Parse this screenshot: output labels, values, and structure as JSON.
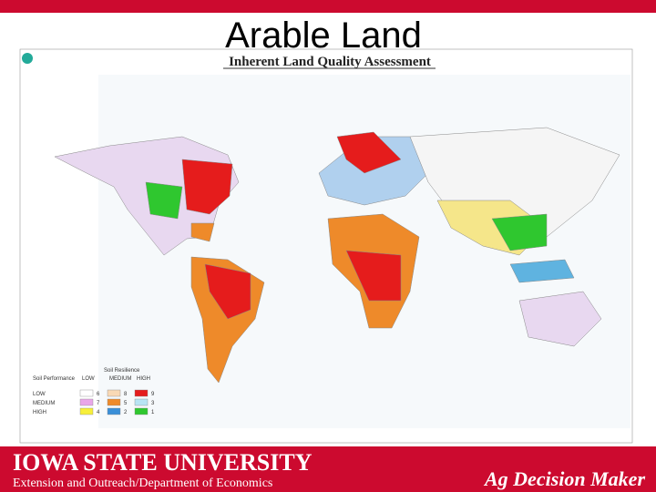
{
  "slide": {
    "title": "Arable Land"
  },
  "map": {
    "title": "Inherent Land Quality Assessment",
    "legend": {
      "row_header": "Soil Performance",
      "column_header": "Soil Resilience",
      "columns": [
        "LOW",
        "MEDIUM",
        "HIGH"
      ],
      "rows": [
        {
          "label": "LOW",
          "classes": [
            "6",
            "8",
            "9"
          ]
        },
        {
          "label": "MEDIUM",
          "classes": [
            "7",
            "5",
            "3"
          ]
        },
        {
          "label": "HIGH",
          "classes": [
            "4",
            "2",
            "1"
          ]
        }
      ]
    }
  },
  "footer": {
    "university": "IOWA STATE UNIVERSITY",
    "department": "Extension and Outreach/Department of Economics",
    "program": "Ag Decision Maker"
  }
}
